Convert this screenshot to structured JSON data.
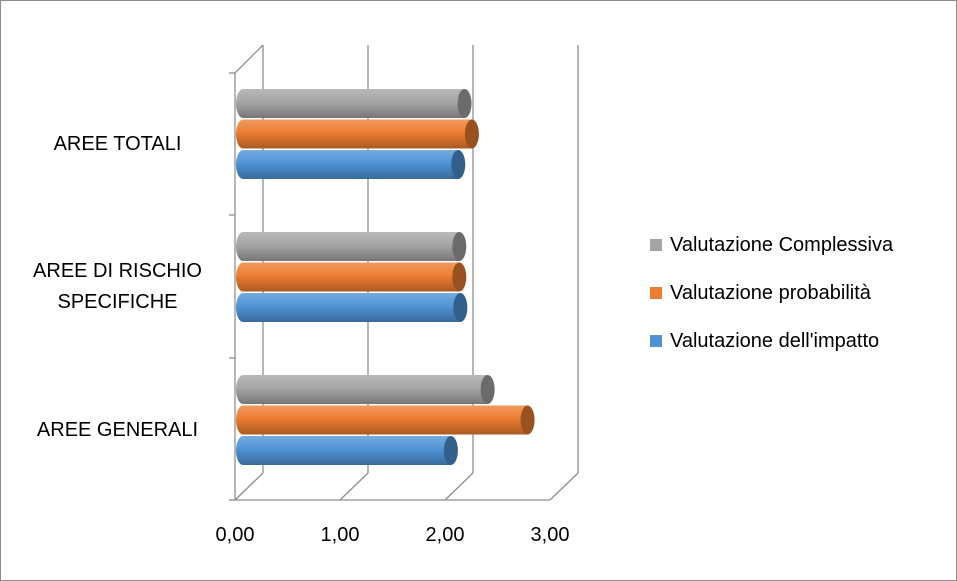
{
  "chart_data": {
    "type": "bar",
    "orientation": "horizontal",
    "three_d": true,
    "categories": [
      "AREE GENERALI",
      "AREE DI RISCHIO SPECIFICHE",
      "AREE TOTALI"
    ],
    "category_lines": [
      [
        "AREE GENERALI"
      ],
      [
        "AREE DI RISCHIO",
        "SPECIFICHE"
      ],
      [
        "AREE TOTALI"
      ]
    ],
    "series": [
      {
        "name": "Valutazione dell'impatto",
        "color": "#4f93d6",
        "values": [
          1.98,
          2.07,
          2.05
        ]
      },
      {
        "name": "Valutazione probabilità",
        "color": "#ed7d31",
        "values": [
          2.71,
          2.06,
          2.18
        ]
      },
      {
        "name": "Valutazione Complessiva",
        "color": "#a5a5a5",
        "values": [
          2.33,
          2.06,
          2.11
        ]
      }
    ],
    "xlim": [
      0,
      3
    ],
    "x_ticks": [
      "0,00",
      "1,00",
      "2,00",
      "3,00"
    ],
    "grid": true,
    "legend_position": "right",
    "legend_order": [
      "Valutazione Complessiva",
      "Valutazione probabilità",
      "Valutazione dell'impatto"
    ]
  }
}
